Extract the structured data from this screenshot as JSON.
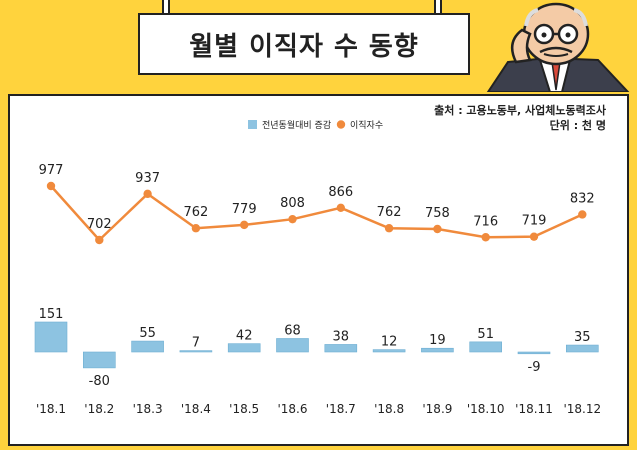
{
  "title": "월별 이직자 수 동향",
  "source": "출처 : 고용노동부, 사업체노동력조사",
  "unit": "단위 : 천 명",
  "legend": {
    "bar_label": "전년동월대비 증감",
    "line_label": "이직자수"
  },
  "colors": {
    "background": "#FFD33D",
    "bar": "#8DC3E1",
    "line": "#F08A3C",
    "text": "#222222"
  },
  "chart_data": {
    "type": "bar+line",
    "categories": [
      "'18.1",
      "'18.2",
      "'18.3",
      "'18.4",
      "'18.5",
      "'18.6",
      "'18.7",
      "'18.8",
      "'18.9",
      "'18.10",
      "'18.11",
      "'18.12"
    ],
    "series": [
      {
        "name": "전년동월대비 증감",
        "type": "bar",
        "values": [
          151,
          -80,
          55,
          7,
          42,
          68,
          38,
          12,
          19,
          51,
          -9,
          35
        ]
      },
      {
        "name": "이직자수",
        "type": "line",
        "values": [
          977,
          702,
          937,
          762,
          779,
          808,
          866,
          762,
          758,
          716,
          719,
          832
        ]
      }
    ],
    "bar_value_labels": [
      "151",
      "-80",
      "55",
      "7",
      "42",
      "68",
      "38",
      "12",
      "19",
      "51",
      "-9",
      "35"
    ],
    "line_value_labels": [
      "977",
      "702",
      "937",
      "762",
      "779",
      "808",
      "866",
      "762",
      "758",
      "716",
      "719",
      "832"
    ]
  }
}
